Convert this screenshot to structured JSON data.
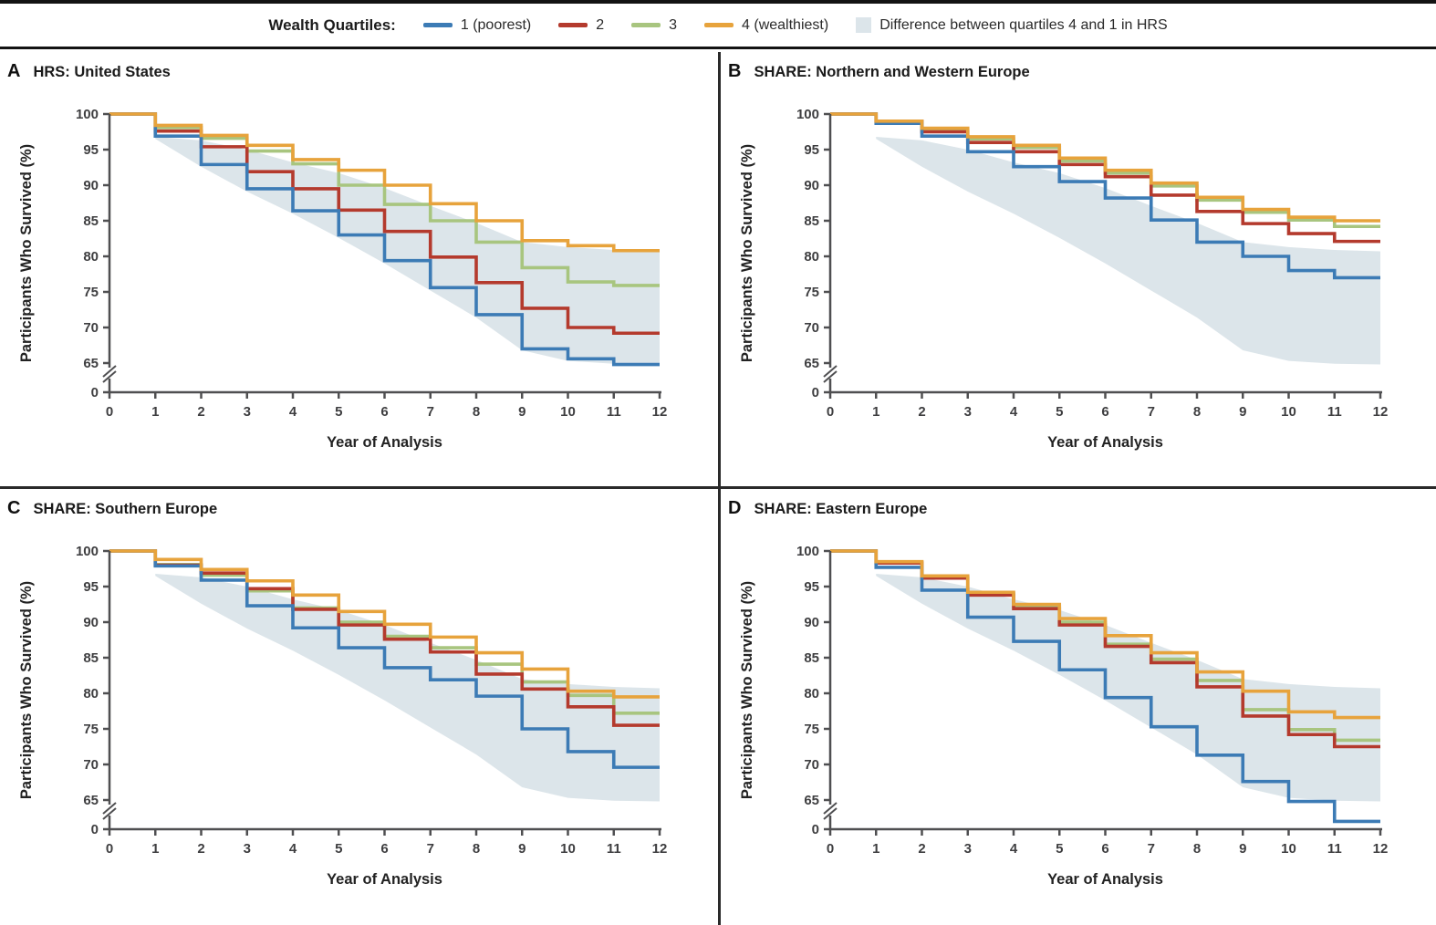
{
  "legend": {
    "label": "Wealth Quartiles:",
    "items": [
      {
        "key": "q1",
        "label": "1 (poorest)",
        "type": "line"
      },
      {
        "key": "q2",
        "label": "2",
        "type": "line"
      },
      {
        "key": "q3",
        "label": "3",
        "type": "line"
      },
      {
        "key": "q4",
        "label": "4 (wealthiest)",
        "type": "line"
      },
      {
        "key": "band",
        "label": "Difference between quartiles 4 and 1 in HRS",
        "type": "box"
      }
    ]
  },
  "axes": {
    "xlabel": "Year of Analysis",
    "ylabel": "Participants Who Survived (%)",
    "x_ticks": [
      0,
      1,
      2,
      3,
      4,
      5,
      6,
      7,
      8,
      9,
      10,
      11,
      12
    ],
    "y_ticks": [
      100,
      95,
      90,
      85,
      80,
      75,
      70,
      65
    ],
    "y_zero_tick": 0,
    "y_axis_break": true,
    "xlim": [
      0,
      12
    ],
    "ylim_shown": [
      65,
      100
    ]
  },
  "colors": {
    "q1": "#3c7bb5",
    "q2": "#b43a2d",
    "q3": "#a8c57f",
    "q4": "#e7a33c",
    "band": "#dce5ea",
    "axis": "#4f4f51",
    "grid_border": "#131313"
  },
  "chart_data": {
    "type": "line",
    "subtype": "step-survival",
    "step": "post",
    "interval_start_years": [
      0,
      1,
      2,
      3,
      4,
      5,
      6,
      7,
      8,
      9,
      10,
      11
    ],
    "series_order_bottom_to_top": [
      "q3",
      "q2",
      "q1",
      "q4"
    ],
    "panels": [
      {
        "letter": "A",
        "title": "HRS: United States",
        "series": {
          "q4": [
            100,
            98.4,
            97.0,
            95.6,
            93.6,
            92.1,
            90.0,
            87.4,
            85.0,
            82.2,
            81.5,
            80.8
          ],
          "q3": [
            100,
            98.1,
            96.6,
            94.8,
            93.0,
            90.0,
            87.3,
            85.0,
            82.0,
            78.4,
            76.4,
            75.9
          ],
          "q2": [
            100,
            97.6,
            95.4,
            91.9,
            89.5,
            86.5,
            83.5,
            79.9,
            76.3,
            72.7,
            70.0,
            69.2
          ],
          "q1": [
            100,
            96.9,
            92.9,
            89.5,
            86.4,
            83.0,
            79.4,
            75.6,
            71.8,
            67.0,
            65.6,
            64.8
          ]
        }
      },
      {
        "letter": "B",
        "title": "SHARE: Northern and Western Europe",
        "series": {
          "q4": [
            100,
            99.0,
            98.0,
            96.8,
            95.6,
            93.8,
            92.1,
            90.3,
            88.3,
            86.6,
            85.5,
            85.0
          ],
          "q3": [
            100,
            98.9,
            97.7,
            96.5,
            95.3,
            93.4,
            91.7,
            89.9,
            87.9,
            86.2,
            85.1,
            84.2
          ],
          "q2": [
            100,
            99.0,
            97.5,
            96.0,
            94.7,
            92.9,
            91.2,
            88.6,
            86.3,
            84.6,
            83.2,
            82.1
          ],
          "q1": [
            100,
            98.7,
            96.9,
            94.7,
            92.6,
            90.5,
            88.2,
            85.1,
            82.0,
            80.0,
            78.0,
            77.0
          ]
        }
      },
      {
        "letter": "C",
        "title": "SHARE: Southern Europe",
        "series": {
          "q4": [
            100,
            98.8,
            97.4,
            95.8,
            93.8,
            91.5,
            89.7,
            87.9,
            85.7,
            83.4,
            80.3,
            79.5
          ],
          "q3": [
            100,
            98.1,
            96.6,
            94.4,
            92.0,
            90.0,
            88.0,
            86.4,
            84.1,
            81.6,
            79.7,
            77.2
          ],
          "q2": [
            100,
            98.0,
            96.9,
            94.7,
            91.8,
            89.6,
            87.6,
            85.8,
            82.7,
            80.6,
            78.1,
            75.5
          ],
          "q1": [
            100,
            97.9,
            95.9,
            92.3,
            89.2,
            86.4,
            83.6,
            81.9,
            79.6,
            75.0,
            71.8,
            69.6
          ]
        }
      },
      {
        "letter": "D",
        "title": "SHARE: Eastern Europe",
        "series": {
          "q4": [
            100,
            98.5,
            96.5,
            94.2,
            92.5,
            90.5,
            88.1,
            85.7,
            83.0,
            80.3,
            77.4,
            76.6
          ],
          "q3": [
            100,
            98.4,
            96.3,
            94.0,
            92.2,
            90.0,
            86.9,
            84.8,
            81.8,
            77.7,
            74.9,
            73.4
          ],
          "q2": [
            100,
            98.3,
            96.2,
            93.8,
            91.9,
            89.6,
            86.6,
            84.3,
            80.9,
            76.8,
            74.2,
            72.5
          ],
          "q1": [
            100,
            97.7,
            94.5,
            90.7,
            87.3,
            83.3,
            79.4,
            75.3,
            71.3,
            67.6,
            64.8,
            62.0
          ]
        }
      }
    ],
    "hrs_band": {
      "label": "Difference between quartiles 4 and 1 in HRS",
      "shown_in_all_panels": true,
      "years": [
        1,
        2,
        3,
        4,
        5,
        6,
        7,
        8,
        9,
        10,
        11,
        12
      ],
      "upper": [
        96.8,
        96.3,
        95.0,
        93.2,
        91.7,
        89.6,
        87.1,
        84.7,
        82.0,
        81.3,
        80.9,
        80.7
      ],
      "lower": [
        96.5,
        92.6,
        89.1,
        86.0,
        82.6,
        79.0,
        75.2,
        71.4,
        66.8,
        65.3,
        64.9,
        64.8
      ]
    }
  }
}
